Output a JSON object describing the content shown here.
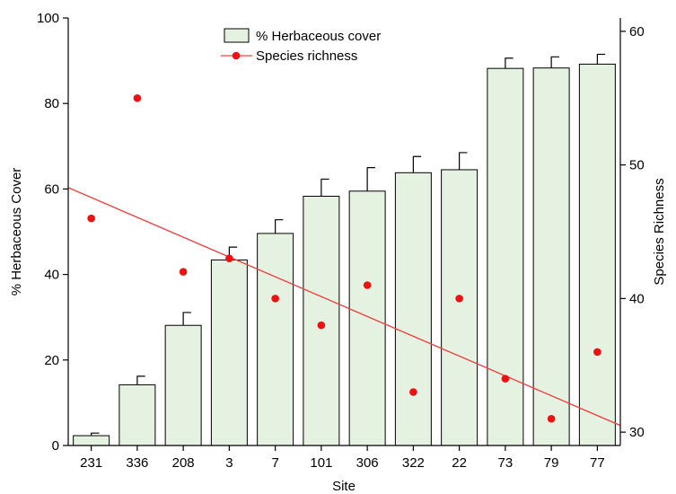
{
  "chart_data": {
    "type": "bar",
    "title": "",
    "xlabel": "Site",
    "ylabel": "% Herbaceous Cover",
    "y2label": "Species Richness",
    "categories": [
      "231",
      "336",
      "208",
      "3",
      "7",
      "101",
      "306",
      "322",
      "22",
      "73",
      "79",
      "77"
    ],
    "ylim": [
      0,
      100
    ],
    "yticks": [
      0,
      20,
      40,
      60,
      80,
      100
    ],
    "y2lim": [
      29,
      61
    ],
    "y2ticks": [
      30,
      40,
      50,
      60
    ],
    "legend_position": "top-center",
    "grid": false,
    "series": [
      {
        "name": "% Herbaceous cover",
        "kind": "bar",
        "axis": "left",
        "color": "#e6f2e1",
        "values": [
          2.3,
          14.2,
          28.1,
          43.4,
          49.6,
          58.3,
          59.5,
          63.8,
          64.5,
          88.2,
          88.3,
          89.2
        ],
        "error": [
          0.6,
          2.0,
          3.0,
          3.0,
          3.2,
          4.0,
          5.5,
          3.8,
          4.0,
          2.4,
          2.6,
          2.3
        ]
      },
      {
        "name": "Species richness",
        "kind": "scatter",
        "axis": "right",
        "color": "#ee1111",
        "values": [
          46,
          55,
          42,
          43,
          40,
          38,
          41,
          33,
          40,
          34,
          31,
          36
        ]
      }
    ],
    "trendline": {
      "axis": "right",
      "color": "#ee4444",
      "start": 48.3,
      "end": 30.5
    }
  }
}
